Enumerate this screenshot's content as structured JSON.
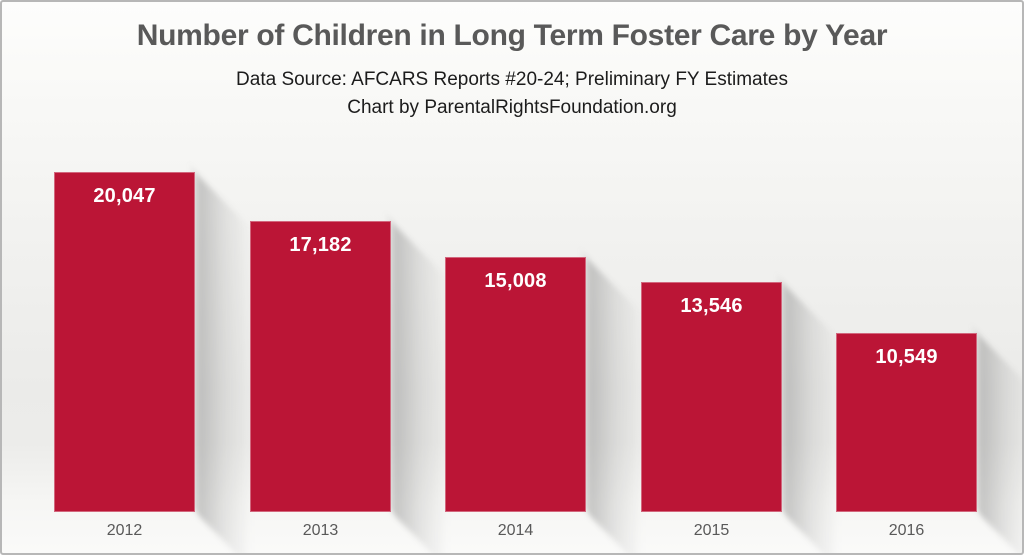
{
  "window": {
    "border_color": "#b7b7b7"
  },
  "header": {
    "title": "Number of Children in Long Term Foster Care by Year",
    "subtitle_line1": "Data Source: AFCARS Reports #20-24; Preliminary FY Estimates",
    "subtitle_line2": "Chart by ParentalRightsFoundation.org"
  },
  "chart_data": {
    "type": "bar",
    "title": "Number of Children in Long Term Foster Care by Year",
    "subtitle": "Data Source: AFCARS Reports #20-24; Preliminary FY Estimates | Chart by ParentalRightsFoundation.org",
    "categories": [
      "2012",
      "2013",
      "2014",
      "2015",
      "2016"
    ],
    "values": [
      20047,
      17182,
      15008,
      13546,
      10549
    ],
    "value_labels": [
      "20,047",
      "17,182",
      "15,008",
      "13,546",
      "10,549"
    ],
    "xlabel": "",
    "ylabel": "",
    "ylim": [
      0,
      21000
    ],
    "grid": false,
    "legend": false,
    "bar_color": "#bb1536",
    "value_label_color": "#ffffff",
    "axis_label_color": "#595959",
    "title_color": "#595959",
    "subtitle_color": "#1c1c1c"
  }
}
